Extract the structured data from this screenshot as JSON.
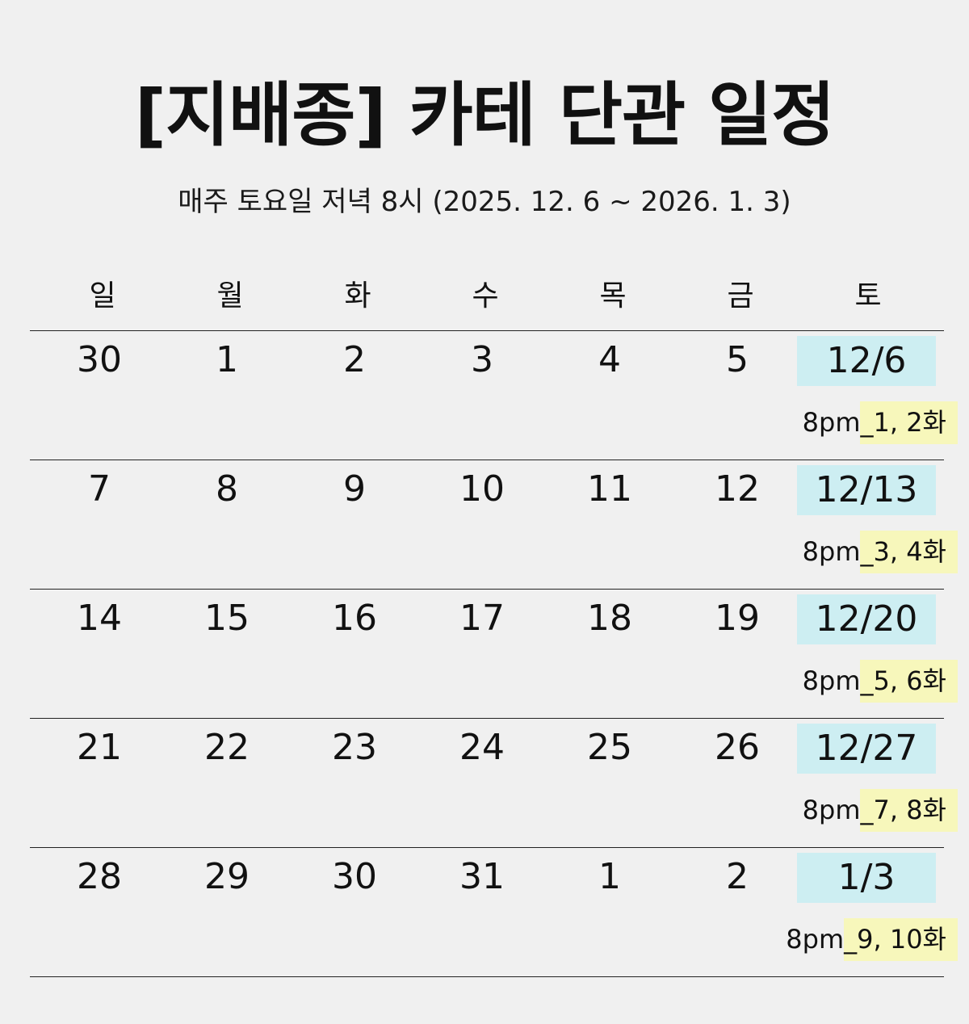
{
  "header": {
    "title": "[지배종] 카테 단관 일정",
    "subtitle": "매주 토요일 저녁 8시 (2025. 12. 6 ~ 2026. 1. 3)"
  },
  "weekdays": [
    "일",
    "월",
    "화",
    "수",
    "목",
    "금",
    "토"
  ],
  "colors": {
    "background": "#f0f0f0",
    "saturday_highlight": "#cdeef2",
    "note_highlight": "#f7f7bb"
  },
  "weeks": [
    {
      "days": [
        "30",
        "1",
        "2",
        "3",
        "4",
        "5"
      ],
      "saturday": "12/6",
      "note_prefix": "8pm",
      "note_episodes": "_1, 2화"
    },
    {
      "days": [
        "7",
        "8",
        "9",
        "10",
        "11",
        "12"
      ],
      "saturday": "12/13",
      "note_prefix": "8pm",
      "note_episodes": "_3, 4화"
    },
    {
      "days": [
        "14",
        "15",
        "16",
        "17",
        "18",
        "19"
      ],
      "saturday": "12/20",
      "note_prefix": "8pm",
      "note_episodes": "_5, 6화"
    },
    {
      "days": [
        "21",
        "22",
        "23",
        "24",
        "25",
        "26"
      ],
      "saturday": "12/27",
      "note_prefix": "8pm",
      "note_episodes": "_7, 8화"
    },
    {
      "days": [
        "28",
        "29",
        "30",
        "31",
        "1",
        "2"
      ],
      "saturday": "1/3",
      "note_prefix": "8pm",
      "note_episodes": "_9, 10화"
    }
  ]
}
